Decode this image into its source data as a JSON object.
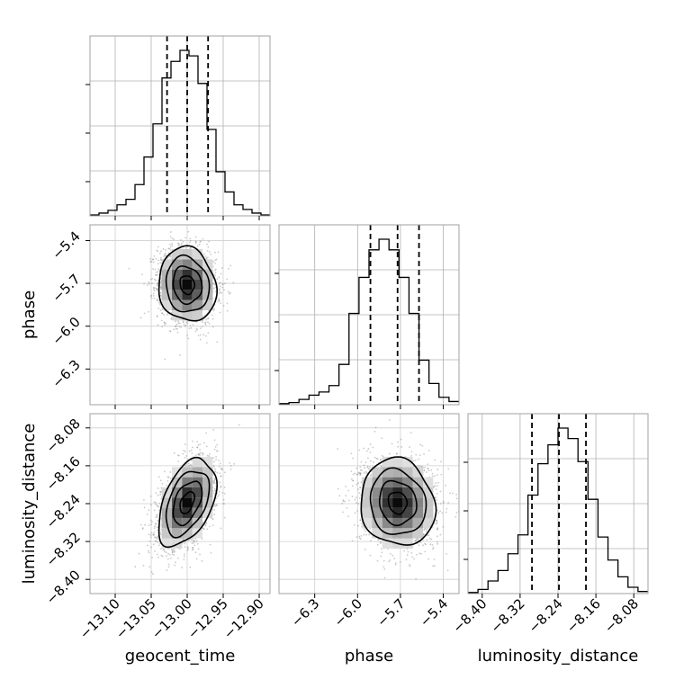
{
  "chart_data": {
    "type": "corner",
    "parameters": [
      "geocent_time",
      "phase",
      "luminosity_distance"
    ],
    "ranges": {
      "geocent_time": [
        -13.135,
        -12.885
      ],
      "phase": [
        -6.55,
        -5.29
      ],
      "luminosity_distance": [
        -8.43,
        -8.05
      ]
    },
    "ticks": {
      "geocent_time": [
        -13.1,
        -13.05,
        -13.0,
        -12.95,
        -12.9
      ],
      "phase": [
        -6.3,
        -6.0,
        -5.7,
        -5.4
      ],
      "luminosity_distance": [
        -8.4,
        -8.32,
        -8.24,
        -8.16,
        -8.08
      ]
    },
    "tick_labels": {
      "geocent_time": [
        "−13.10",
        "−13.05",
        "−13.00",
        "−12.95",
        "−12.90"
      ],
      "phase": [
        "−6.3",
        "−6.0",
        "−5.7",
        "−5.4"
      ],
      "luminosity_distance": [
        "−8.40",
        "−8.32",
        "−8.24",
        "−8.16",
        "−8.08"
      ]
    },
    "axis_labels": {
      "geocent_time": "geocent_time",
      "phase": "phase",
      "luminosity_distance": "luminosity_distance"
    },
    "quantiles": {
      "geocent_time": [
        -13.028,
        -13.0,
        -12.971
      ],
      "phase": [
        -5.91,
        -5.72,
        -5.57
      ],
      "luminosity_distance": [
        -8.295,
        -8.238,
        -8.181
      ]
    },
    "histograms": {
      "geocent_time": [
        0.5,
        1.5,
        3,
        6,
        9,
        17,
        32,
        50,
        75,
        84,
        90,
        87,
        72,
        47,
        24,
        13,
        6,
        3.5,
        1.5,
        0.5
      ],
      "phase": [
        0.5,
        1,
        2.5,
        4.5,
        6,
        9,
        19,
        43,
        60,
        73,
        78,
        73,
        60,
        43,
        21,
        10,
        3.5,
        1.5
      ],
      "luminosity_distance": [
        0.5,
        2,
        6,
        11,
        19,
        28,
        47,
        62,
        71,
        79,
        74,
        63,
        45,
        27,
        16,
        8,
        3,
        1
      ]
    },
    "joint": {
      "phase_vs_geocent_time": {
        "center": [
          -13.0,
          -5.71
        ],
        "sigma": [
          0.02,
          0.13
        ],
        "rho": -0.1
      },
      "luminosity_distance_vs_geocent_time": {
        "center": [
          -13.0,
          -8.238
        ],
        "sigma": [
          0.02,
          0.046
        ],
        "rho": 0.45
      },
      "luminosity_distance_vs_phase": {
        "center": [
          -5.72,
          -8.238
        ],
        "sigma": [
          0.13,
          0.046
        ],
        "rho": -0.1
      }
    },
    "grid": true,
    "legend": "none"
  }
}
